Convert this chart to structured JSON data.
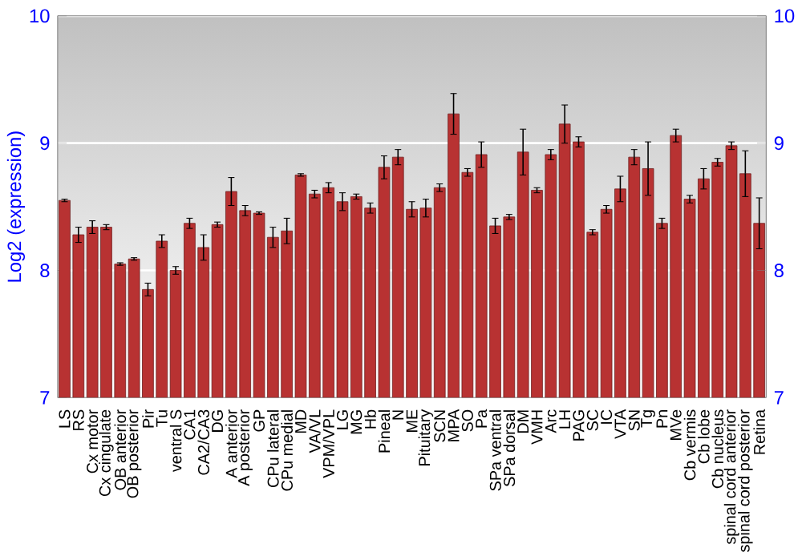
{
  "chart_data": {
    "type": "bar",
    "ylabel": "Log2 (expression)",
    "categories": [
      "LS",
      "RS",
      "Cx motor",
      "Cx cingulate",
      "OB anterior",
      "OB posterior",
      "Pir",
      "Tu",
      "ventral S",
      "CA1",
      "CA2/CA3",
      "DG",
      "A anterior",
      "A posterior",
      "GP",
      "CPu lateral",
      "CPu medial",
      "MD",
      "VA/VL",
      "VPM/VPL",
      "LG",
      "MG",
      "Hb",
      "Pineal",
      "N",
      "ME",
      "Pituitary",
      "SCN",
      "MPA",
      "SO",
      "Pa",
      "SPa ventral",
      "SPa dorsal",
      "DM",
      "VMH",
      "Arc",
      "LH",
      "PAG",
      "SC",
      "IC",
      "VTA",
      "SN",
      "Tg",
      "Pn",
      "MVe",
      "Cb vermis",
      "Cb lobe",
      "Cb nucleus",
      "spinal cord anterior",
      "spinal cord posterior",
      "Retina"
    ],
    "values": [
      8.55,
      8.28,
      8.34,
      8.34,
      8.05,
      8.09,
      7.85,
      8.23,
      8.0,
      8.37,
      8.18,
      8.36,
      8.62,
      8.47,
      8.45,
      8.26,
      8.31,
      8.75,
      8.6,
      8.65,
      8.54,
      8.58,
      8.49,
      8.81,
      8.89,
      8.48,
      8.49,
      8.65,
      9.23,
      8.77,
      8.91,
      8.35,
      8.42,
      8.93,
      8.63,
      8.91,
      9.15,
      9.01,
      8.3,
      8.48,
      8.64,
      8.89,
      8.8,
      8.37,
      9.06,
      8.56,
      8.72,
      8.85,
      8.98,
      8.76,
      8.37
    ],
    "errors": [
      0.01,
      0.06,
      0.05,
      0.02,
      0.01,
      0.01,
      0.05,
      0.05,
      0.03,
      0.04,
      0.1,
      0.02,
      0.11,
      0.04,
      0.01,
      0.08,
      0.1,
      0.01,
      0.03,
      0.04,
      0.07,
      0.02,
      0.04,
      0.09,
      0.06,
      0.06,
      0.07,
      0.03,
      0.16,
      0.03,
      0.1,
      0.06,
      0.02,
      0.18,
      0.02,
      0.04,
      0.15,
      0.04,
      0.02,
      0.03,
      0.1,
      0.06,
      0.21,
      0.04,
      0.05,
      0.03,
      0.08,
      0.03,
      0.03,
      0.18,
      0.2
    ],
    "color": "#b83232",
    "ylim": [
      7,
      10
    ],
    "yticks": [
      7,
      8,
      9,
      10
    ],
    "y2lim": [
      7,
      10
    ],
    "y2ticks": [
      7,
      8,
      9,
      10
    ],
    "grid": "y"
  }
}
